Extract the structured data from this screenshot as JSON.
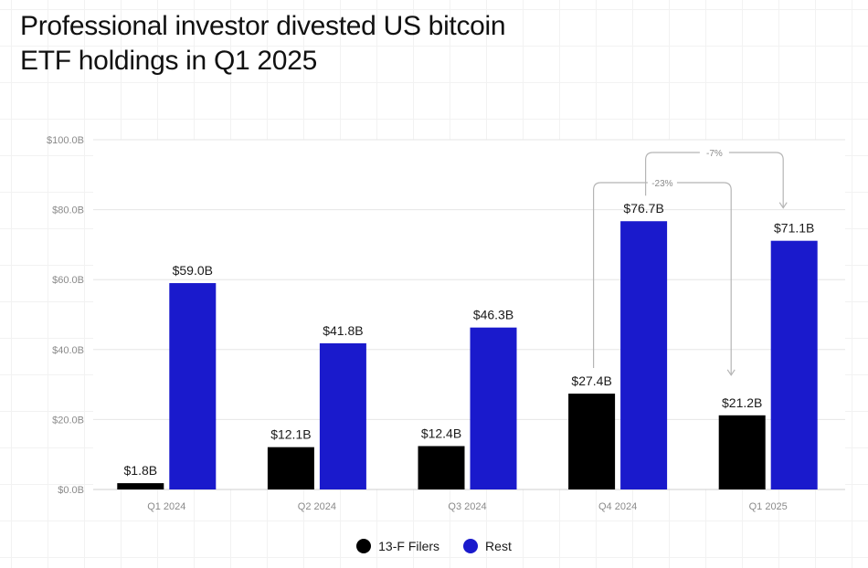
{
  "title": "Professional investor divested US bitcoin\nETF holdings in Q1 2025",
  "colors": {
    "filers": "#000000",
    "rest": "#1a1acc",
    "grid": "#e6e6e6",
    "arrow": "#b5b5b5"
  },
  "legend": [
    {
      "label": "13-F Filers",
      "color": "#000000"
    },
    {
      "label": "Rest",
      "color": "#1a1acc"
    }
  ],
  "chart_data": {
    "type": "bar",
    "title": "Professional investor divested US bitcoin ETF holdings in Q1 2025",
    "categories": [
      "Q1 2024",
      "Q2 2024",
      "Q3 2024",
      "Q4 2024",
      "Q1 2025"
    ],
    "series": [
      {
        "name": "13-F Filers",
        "values": [
          1.8,
          12.1,
          12.4,
          27.4,
          21.2
        ],
        "labels": [
          "$1.8B",
          "$12.1B",
          "$12.4B",
          "$27.4B",
          "$21.2B"
        ]
      },
      {
        "name": "Rest",
        "values": [
          59.0,
          41.8,
          46.3,
          76.7,
          71.1
        ],
        "labels": [
          "$59.0B",
          "$41.8B",
          "$46.3B",
          "$76.7B",
          "$71.1B"
        ]
      }
    ],
    "y_ticks": [
      "$0.0B",
      "$20.0B",
      "$40.0B",
      "$60.0B",
      "$80.0B",
      "$100.0B"
    ],
    "ylim": [
      0,
      100
    ],
    "xlabel": "",
    "ylabel": "",
    "annotations": [
      {
        "text": "-23%",
        "series": "13-F Filers",
        "from": "Q4 2024",
        "to": "Q1 2025"
      },
      {
        "text": "-7%",
        "series": "Rest",
        "from": "Q4 2024",
        "to": "Q1 2025"
      }
    ],
    "legend_position": "bottom"
  }
}
